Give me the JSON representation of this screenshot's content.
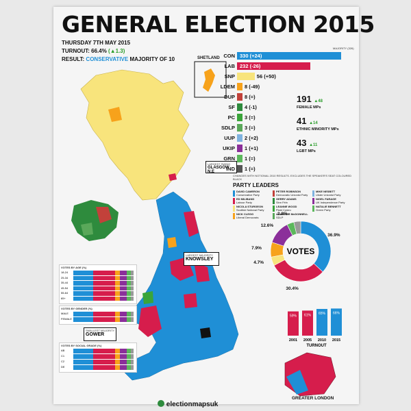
{
  "poster": {
    "title": "GENERAL ELECTION 2015",
    "date": "THURSDAY 7TH MAY 2015",
    "turnout_label": "TURNOUT:",
    "turnout_value": "66.4%",
    "turnout_change": "(▲1.3)",
    "result_label": "RESULT:",
    "result_party": "CONSERVATIVE",
    "result_rest": "MAJORITY OF 10",
    "majority_marker": "MAJORITY (326)"
  },
  "seats": [
    {
      "party": "CON",
      "text": "330 (+24)",
      "value": 330,
      "color": "#1f8fd6",
      "text_color": "#ffffff"
    },
    {
      "party": "LAB",
      "text": "232 (-26)",
      "value": 232,
      "color": "#d61d4c",
      "text_color": "#ffffff"
    },
    {
      "party": "SNP",
      "text": "56 (+50)",
      "value": 56,
      "color": "#f8e47c",
      "text_color": "#111111"
    },
    {
      "party": "LDEM",
      "text": "8 (-49)",
      "value": 8,
      "color": "#f7a21b",
      "text_color": "#111111"
    },
    {
      "party": "DUP",
      "text": "8 (=)",
      "value": 8,
      "color": "#c2413a",
      "text_color": "#111111"
    },
    {
      "party": "SF",
      "text": "4 (-1)",
      "value": 4,
      "color": "#2e8b3d",
      "text_color": "#111111"
    },
    {
      "party": "PC",
      "text": "3 (=)",
      "value": 3,
      "color": "#3aa53a",
      "text_color": "#111111"
    },
    {
      "party": "SDLP",
      "text": "3 (=)",
      "value": 3,
      "color": "#5aa85a",
      "text_color": "#111111"
    },
    {
      "party": "UUP",
      "text": "2 (+2)",
      "value": 2,
      "color": "#7fb3e0",
      "text_color": "#111111"
    },
    {
      "party": "UKIP",
      "text": "1 (+1)",
      "value": 1,
      "color": "#8b2f9a",
      "text_color": "#111111"
    },
    {
      "party": "GRN",
      "text": "1 (=)",
      "value": 1,
      "color": "#5cb85c",
      "text_color": "#111111"
    },
    {
      "party": "IND",
      "text": "1 (=)",
      "value": 1,
      "color": "#555555",
      "text_color": "#111111"
    }
  ],
  "seats_note": "CHANGES WITH NOTIONAL 2010 RESULTS. EXCLUDES THE SPEAKER'S SEAT COLOURED BLACK",
  "stats": [
    {
      "number": "191",
      "change": "48",
      "label": "FEMALE MPs"
    },
    {
      "number": "41",
      "change": "14",
      "label": "ETHNIC MINORITY MPs"
    },
    {
      "number": "43",
      "change": "11",
      "label": "LGBT MPs"
    }
  ],
  "leaders_title": "PARTY LEADERS",
  "leaders": [
    {
      "name": "DAVID CAMERON",
      "party": "Conservative Party",
      "color": "#1f8fd6"
    },
    {
      "name": "ED MILIBAND",
      "party": "Labour Party",
      "color": "#d61d4c"
    },
    {
      "name": "NICOLA STURGEON",
      "party": "Scottish National Party",
      "color": "#f8e47c"
    },
    {
      "name": "NICK CLEGG",
      "party": "Liberal Democrats",
      "color": "#f7a21b"
    },
    {
      "name": "PETER ROBINSON",
      "party": "Democratic Unionist Party",
      "color": "#c2413a"
    },
    {
      "name": "GERRY ADAMS",
      "party": "Sinn Féin",
      "color": "#2e8b3d"
    },
    {
      "name": "LEANNE WOOD",
      "party": "Plaid Cymru",
      "color": "#3aa53a"
    },
    {
      "name": "ALASDAIR McDONNELL",
      "party": "SDLP",
      "color": "#5aa85a"
    },
    {
      "name": "MIKE NESBITT",
      "party": "Ulster Unionist Party",
      "color": "#7fb3e0"
    },
    {
      "name": "NIGEL FARAGE",
      "party": "UK Independence Party",
      "color": "#8b2f9a"
    },
    {
      "name": "NATALIE BENNETT",
      "party": "Green Party",
      "color": "#5cb85c"
    }
  ],
  "chart_data": [
    {
      "type": "pie",
      "title": "VOTES",
      "labels": [
        "CON",
        "LAB",
        "SNP",
        "LDEM",
        "UKIP",
        "GRN",
        "OTHER"
      ],
      "values": [
        36.9,
        30.4,
        4.7,
        7.9,
        12.6,
        3.8,
        3.7
      ],
      "value_labels": [
        "36.9%",
        "30.4%",
        "4.7%",
        "7.9%",
        "12.6%",
        "3.8%",
        ""
      ],
      "colors": [
        "#1f8fd6",
        "#d61d4c",
        "#f8e47c",
        "#f7a21b",
        "#8b2f9a",
        "#5cb85c",
        "#999999"
      ]
    },
    {
      "type": "bar",
      "title": "TURNOUT",
      "categories": [
        "2001",
        "2005",
        "2010",
        "2015"
      ],
      "values": [
        59,
        61,
        65,
        66
      ],
      "value_labels": [
        "59%",
        "61%",
        "65%",
        "66%"
      ],
      "colors": [
        "#d61d4c",
        "#d61d4c",
        "#1f8fd6",
        "#1f8fd6"
      ],
      "ylim": [
        0,
        100
      ]
    },
    {
      "type": "bar",
      "title": "VOTES BY AGE (%)",
      "categories": [
        "18-24",
        "25-34",
        "35-44",
        "45-54",
        "55-64",
        "65+"
      ],
      "series_note": "stacked CON / LAB / LDEM / UKIP / GRN / OTHER"
    },
    {
      "type": "bar",
      "title": "VOTES BY GENDER (%)",
      "categories": [
        "MALE",
        "FEMALE"
      ]
    },
    {
      "type": "bar",
      "title": "VOTES BY SOCIAL GRADE (%)",
      "categories": [
        "AB",
        "C1",
        "C2",
        "DE"
      ]
    }
  ],
  "labels": {
    "shetland": "SHETLAND",
    "glasgow_tag": "LARGEST SWING",
    "glasgow": "GLASGOW N.E",
    "knowsley_tag": "LARGEST MAJORITY",
    "knowsley": "KNOWSLEY",
    "gower_tag": "SMALLEST MAJORITY",
    "gower": "GOWER",
    "greater_london": "GREATER LONDON",
    "brand": "electionmapsuk"
  }
}
